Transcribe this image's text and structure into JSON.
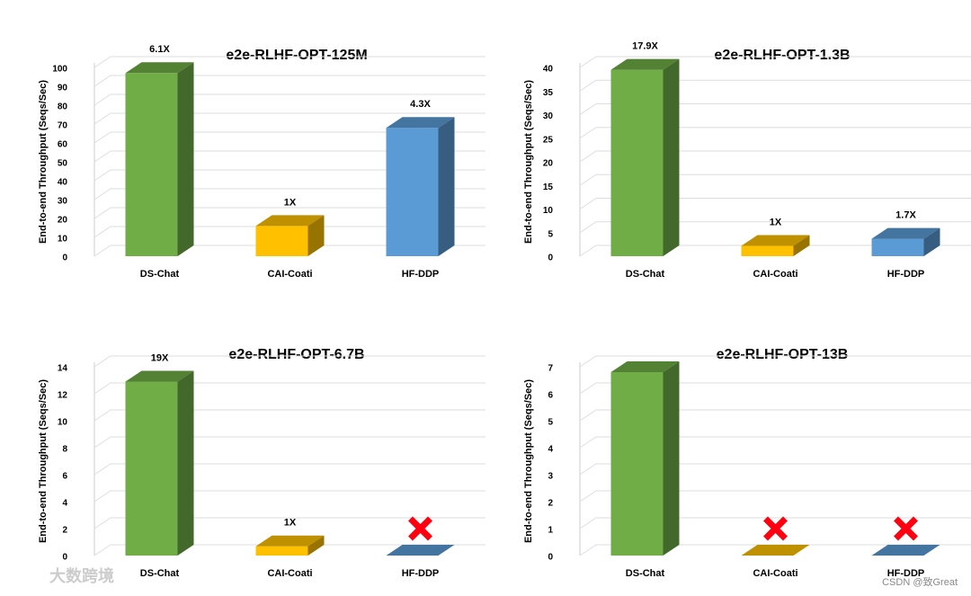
{
  "chart_data": [
    {
      "type": "bar3d",
      "title": "e2e-RLHF-OPT-125M",
      "y_label": "End-to-end Throughput (Seqs/Sec)",
      "categories": [
        "DS-Chat",
        "CAI-Coati",
        "HF-DDP"
      ],
      "values": [
        97,
        16,
        68
      ],
      "annotations": [
        "6.1X",
        "1X",
        "4.3X"
      ],
      "colors": [
        "#70ad47",
        "#ffc000",
        "#5b9bd5"
      ],
      "ylim": [
        0,
        100
      ],
      "yticks": [
        0,
        10,
        20,
        30,
        40,
        50,
        60,
        70,
        80,
        90,
        100
      ],
      "grid": true
    },
    {
      "type": "bar3d",
      "title": "e2e-RLHF-OPT-1.3B",
      "y_label": "End-to-end Throughput (Seqs/Sec)",
      "categories": [
        "DS-Chat",
        "CAI-Coati",
        "HF-DDP"
      ],
      "values": [
        39.5,
        2.2,
        3.7
      ],
      "annotations": [
        "17.9X",
        "1X",
        "1.7X"
      ],
      "colors": [
        "#70ad47",
        "#ffc000",
        "#5b9bd5"
      ],
      "ylim": [
        0,
        40
      ],
      "yticks": [
        0,
        5,
        10,
        15,
        20,
        25,
        30,
        35,
        40
      ],
      "grid": true
    },
    {
      "type": "bar3d",
      "title": "e2e-RLHF-OPT-6.7B",
      "y_label": "End-to-end Throughput (Seqs/Sec)",
      "categories": [
        "DS-Chat",
        "CAI-Coati",
        "HF-DDP"
      ],
      "values": [
        12.9,
        0.68,
        null
      ],
      "annotations": [
        "19X",
        "1X",
        null
      ],
      "colors": [
        "#70ad47",
        "#ffc000",
        "#5b9bd5"
      ],
      "ylim": [
        0,
        14
      ],
      "yticks": [
        0,
        2,
        4,
        6,
        8,
        10,
        12,
        14
      ],
      "grid": true
    },
    {
      "type": "bar3d",
      "title": "e2e-RLHF-OPT-13B",
      "y_label": "End-to-end Throughput (Seqs/Sec)",
      "categories": [
        "DS-Chat",
        "CAI-Coati",
        "HF-DDP"
      ],
      "values": [
        6.8,
        null,
        null
      ],
      "annotations": [
        null,
        null,
        null
      ],
      "colors": [
        "#70ad47",
        "#ffc000",
        "#5b9bd5"
      ],
      "ylim": [
        0,
        7
      ],
      "yticks": [
        0,
        1,
        2,
        3,
        4,
        5,
        6,
        7
      ],
      "grid": true
    }
  ],
  "watermarks": [
    "大数跨境",
    "CSDN @致Great"
  ]
}
